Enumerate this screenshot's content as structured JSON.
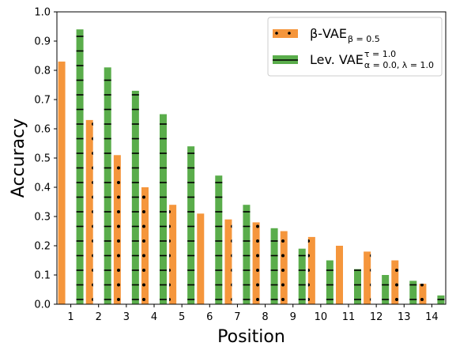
{
  "chart_data": {
    "type": "bar",
    "xlabel": "Position",
    "ylabel": "Accuracy",
    "ylim": [
      0,
      1.0
    ],
    "yticks": [
      "0.0",
      "0.1",
      "0.2",
      "0.3",
      "0.4",
      "0.5",
      "0.6",
      "0.7",
      "0.8",
      "0.9",
      "1.0"
    ],
    "categories": [
      "1",
      "2",
      "3",
      "4",
      "5",
      "6",
      "7",
      "8",
      "9",
      "10",
      "11",
      "12",
      "13",
      "14"
    ],
    "legend_position": "top-right",
    "series": [
      {
        "name": "β-VAE",
        "name_sub": "β = 0.5",
        "color": "#f5963c",
        "hatch": "dots",
        "values": [
          0.83,
          0.63,
          0.51,
          0.4,
          0.34,
          0.31,
          0.29,
          0.28,
          0.25,
          0.23,
          0.2,
          0.18,
          0.15,
          0.07
        ]
      },
      {
        "name": "Lev. VAE",
        "name_sup": "τ = 1.0",
        "name_sub": "α = 0.0, λ = 1.0",
        "color": "#5aad4b",
        "hatch": "horizontal-lines",
        "values": [
          0.94,
          0.81,
          0.73,
          0.65,
          0.54,
          0.44,
          0.34,
          0.26,
          0.19,
          0.15,
          0.12,
          0.1,
          0.08,
          0.03
        ]
      }
    ]
  }
}
